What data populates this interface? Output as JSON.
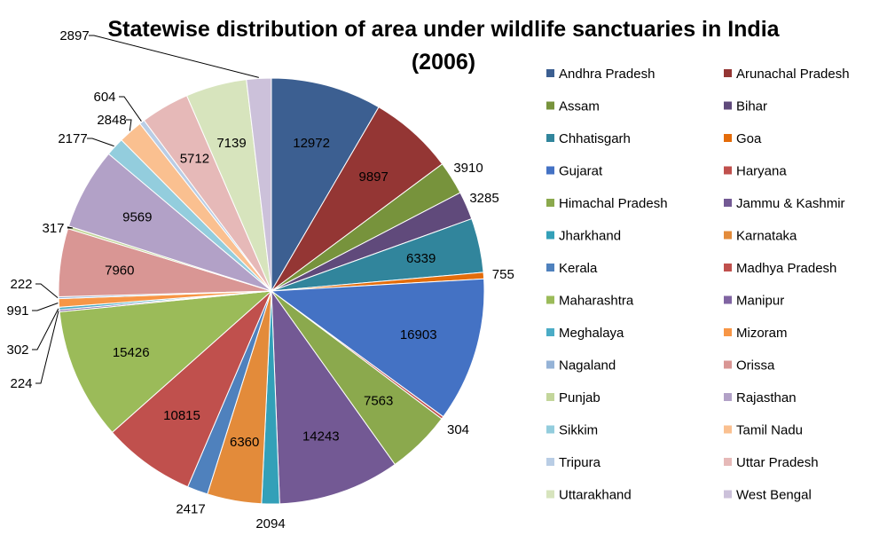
{
  "chart_data": {
    "type": "pie",
    "title_line1": "Statewise distribution of area under wildlife sanctuaries in India",
    "title_line2": "(2006)",
    "legend_position": "right",
    "slices": [
      {
        "name": "Andhra Pradesh",
        "value": 12972,
        "color": "#3C5F91"
      },
      {
        "name": "Arunachal Pradesh",
        "value": 9897,
        "color": "#943634"
      },
      {
        "name": "Assam",
        "value": 3910,
        "color": "#77933C"
      },
      {
        "name": "Bihar",
        "value": 3285,
        "color": "#604A7B"
      },
      {
        "name": "Chhatisgarh",
        "value": 6339,
        "color": "#31859C"
      },
      {
        "name": "Goa",
        "value": 755,
        "color": "#E46C0A"
      },
      {
        "name": "Gujarat",
        "value": 16903,
        "color": "#4472C4"
      },
      {
        "name": "Haryana",
        "value": 304,
        "color": "#C0504D"
      },
      {
        "name": "Himachal Pradesh",
        "value": 7563,
        "color": "#8BA94D"
      },
      {
        "name": "Jammu & Kashmir",
        "value": 14243,
        "color": "#735994"
      },
      {
        "name": "Jharkhand",
        "value": 2094,
        "color": "#33A0B8"
      },
      {
        "name": "Karnataka",
        "value": 6360,
        "color": "#E38B3A"
      },
      {
        "name": "Kerala",
        "value": 2417,
        "color": "#4F81BD"
      },
      {
        "name": "Madhya Pradesh",
        "value": 10815,
        "color": "#C0504D"
      },
      {
        "name": "Maharashtra",
        "value": 15426,
        "color": "#9BBB59"
      },
      {
        "name": "Manipur",
        "value": 224,
        "color": "#8064A2"
      },
      {
        "name": "Meghalaya",
        "value": 302,
        "color": "#4BACC6"
      },
      {
        "name": "Mizoram",
        "value": 991,
        "color": "#F79646"
      },
      {
        "name": "Nagaland",
        "value": 222,
        "color": "#95B3D7"
      },
      {
        "name": "Orissa",
        "value": 7960,
        "color": "#D99694"
      },
      {
        "name": "Punjab",
        "value": 317,
        "color": "#C3D69B"
      },
      {
        "name": "Rajasthan",
        "value": 9569,
        "color": "#B2A1C7"
      },
      {
        "name": "Sikkim",
        "value": 2177,
        "color": "#93CDDD"
      },
      {
        "name": "Tamil Nadu",
        "value": 2848,
        "color": "#FAC090"
      },
      {
        "name": "Tripura",
        "value": 604,
        "color": "#B9CDE5"
      },
      {
        "name": "Uttar Pradesh",
        "value": 5712,
        "color": "#E6B9B8"
      },
      {
        "name": "Uttarakhand",
        "value": 7139,
        "color": "#D7E4BD"
      },
      {
        "name": "West Bengal",
        "value": 2897,
        "color": "#CCC1DA"
      }
    ]
  }
}
